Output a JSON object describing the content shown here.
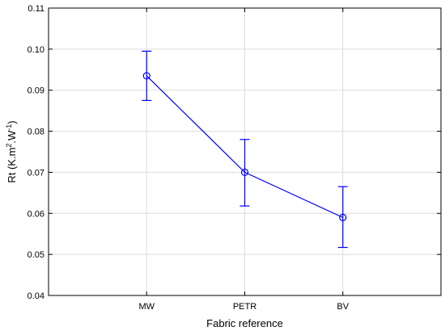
{
  "chart_data": {
    "type": "line",
    "xlabel": "Fabric reference",
    "ylabel": {
      "main": "Rt (K.m",
      "sup1": "2",
      "mid": ".W",
      "sup2": "-1",
      "end": ")"
    },
    "categories": [
      "MW",
      "PETR",
      "BV"
    ],
    "series": [
      {
        "values": [
          0.0935,
          0.07,
          0.059
        ],
        "error_low": [
          0.0875,
          0.0618,
          0.0517
        ],
        "error_high": [
          0.0995,
          0.078,
          0.0665
        ],
        "color": "#0000ff"
      }
    ],
    "ylim": [
      0.04,
      0.11
    ],
    "yticks": [
      "0.04",
      "0.05",
      "0.06",
      "0.07",
      "0.08",
      "0.09",
      "0.10",
      "0.11"
    ],
    "grid": true
  }
}
